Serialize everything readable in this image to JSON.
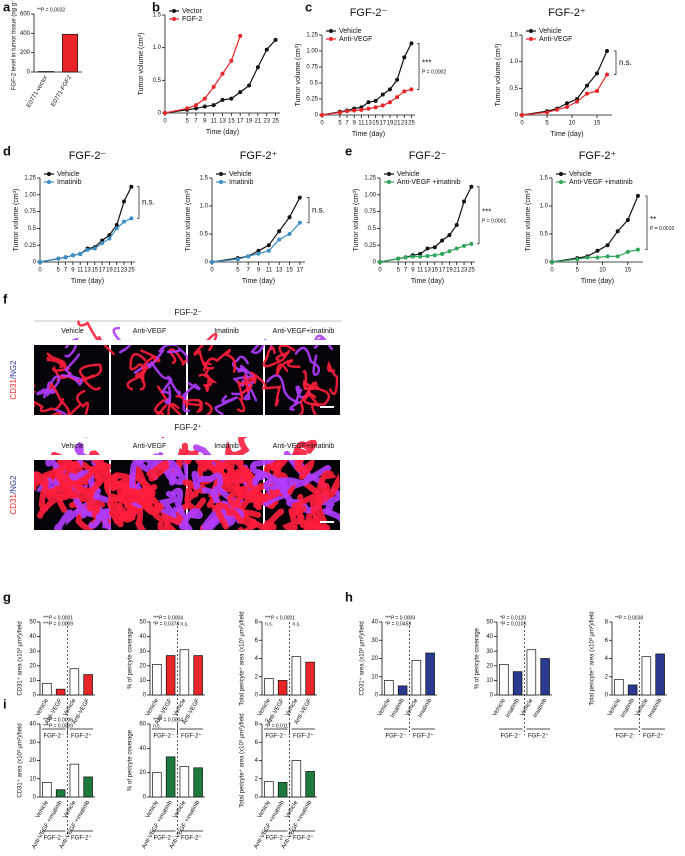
{
  "chart_data": [
    {
      "type": "bar",
      "panel": "a",
      "ylabel": "FGF-2 level in tumor tissue (ng g⁻¹)",
      "categories": [
        "E0771-vector",
        "E0771-FGF2"
      ],
      "values": [
        5,
        390
      ],
      "colors": [
        "#ffffff",
        "#e8262a"
      ],
      "ylim": [
        0,
        600
      ],
      "yticks": [
        0,
        200,
        400,
        600
      ],
      "annotations": [
        "**P = 0.0032"
      ]
    },
    {
      "type": "line",
      "panel": "b",
      "xlabel": "Time (day)",
      "ylabel": "Tumor volume (cm³)",
      "x": [
        0,
        5,
        7,
        9,
        11,
        13,
        15,
        17,
        19,
        21,
        23,
        25
      ],
      "xlim": [
        0,
        26
      ],
      "xticks": [
        0,
        5,
        7,
        9,
        11,
        13,
        15,
        17,
        19,
        21,
        23,
        25
      ],
      "ylim": [
        0,
        1.5
      ],
      "yticks": [
        0,
        0.5,
        {
          "value": 1,
          "label": "1.0"
        },
        1.5
      ],
      "series": [
        {
          "name": "Vector",
          "color": "#111111",
          "values": [
            0,
            0.05,
            0.07,
            0.1,
            0.12,
            0.2,
            0.22,
            0.32,
            0.42,
            0.7,
            0.97,
            1.12
          ]
        },
        {
          "name": "FGF-2",
          "color": "#e8262a",
          "values": [
            0,
            0.07,
            0.12,
            0.22,
            0.4,
            0.6,
            0.8,
            1.18,
            null,
            null,
            null,
            null
          ]
        }
      ]
    },
    {
      "type": "line",
      "panel": "c",
      "title": "FGF-2⁻",
      "xlabel": "Time (day)",
      "ylabel": "Tumor volume (cm³)",
      "x": [
        0,
        5,
        7,
        9,
        11,
        13,
        15,
        17,
        19,
        21,
        23,
        25
      ],
      "xlim": [
        0,
        26
      ],
      "xticks": [
        0,
        5,
        7,
        9,
        11,
        13,
        15,
        17,
        19,
        21,
        23,
        25
      ],
      "ylim": [
        0,
        1.25
      ],
      "yticks": [
        0,
        0.25,
        0.5,
        0.75,
        {
          "value": 1,
          "label": "1.00"
        },
        1.25
      ],
      "series": [
        {
          "name": "Vehicle",
          "color": "#111111",
          "values": [
            0,
            0.05,
            0.07,
            0.1,
            0.12,
            0.2,
            0.22,
            0.32,
            0.4,
            0.55,
            0.9,
            1.12
          ]
        },
        {
          "name": "Anti-VEGF",
          "color": "#e8262a",
          "values": [
            0,
            0.04,
            0.06,
            0.07,
            0.08,
            0.1,
            0.12,
            0.15,
            0.2,
            0.28,
            0.37,
            0.4
          ]
        }
      ],
      "annotations": [
        "***",
        "P = 0.0002"
      ]
    },
    {
      "type": "line",
      "title": "FGF-2⁺",
      "xlabel": "Time (day)",
      "ylabel": "Tumor volume (cm³)",
      "x": [
        0,
        5,
        7,
        9,
        11,
        13,
        15,
        17
      ],
      "xlim": [
        0,
        18
      ],
      "xticks": [
        0,
        5,
        10,
        15
      ],
      "ylim": [
        0,
        1.5
      ],
      "yticks": [
        0,
        0.5,
        {
          "value": 1,
          "label": "1.0"
        },
        1.5
      ],
      "series": [
        {
          "name": "Vehicle",
          "color": "#111111",
          "values": [
            0,
            0.07,
            0.12,
            0.22,
            0.3,
            0.55,
            0.78,
            1.2
          ]
        },
        {
          "name": "Anti-VEGF",
          "color": "#e8262a",
          "values": [
            0,
            0.05,
            0.1,
            0.15,
            0.25,
            0.4,
            0.45,
            0.76
          ]
        }
      ],
      "annotations": [
        "n.s."
      ]
    },
    {
      "type": "line",
      "panel": "d",
      "title": "FGF-2⁻",
      "xlabel": "Time (day)",
      "ylabel": "Tumor volume (cm³)",
      "x": [
        0,
        5,
        7,
        9,
        11,
        13,
        15,
        17,
        19,
        21,
        23,
        25
      ],
      "xlim": [
        0,
        26
      ],
      "xticks": [
        0,
        5,
        7,
        9,
        11,
        13,
        15,
        17,
        19,
        21,
        23,
        25
      ],
      "ylim": [
        0,
        1.25
      ],
      "yticks": [
        0,
        0.25,
        0.5,
        0.75,
        {
          "value": 1,
          "label": "1.00"
        },
        1.25
      ],
      "series": [
        {
          "name": "Vehicle",
          "color": "#111111",
          "values": [
            0,
            0.05,
            0.07,
            0.1,
            0.12,
            0.2,
            0.22,
            0.32,
            0.4,
            0.55,
            0.9,
            1.12
          ]
        },
        {
          "name": "Imatinib",
          "color": "#3a8fc4",
          "values": [
            0,
            0.05,
            0.07,
            0.1,
            0.12,
            0.18,
            0.2,
            0.28,
            0.35,
            0.5,
            0.6,
            0.65
          ]
        }
      ],
      "annotations": [
        "n.s."
      ]
    },
    {
      "type": "line",
      "title": "FGF-2⁺",
      "xlabel": "Time (day)",
      "ylabel": "Tumor volume (cm³)",
      "x": [
        0,
        5,
        7,
        9,
        11,
        13,
        15,
        17
      ],
      "xlim": [
        0,
        18
      ],
      "xticks": [
        0,
        5,
        7,
        9,
        11,
        13,
        15,
        17
      ],
      "ylim": [
        0,
        1.5
      ],
      "yticks": [
        0,
        0.5,
        {
          "value": 1,
          "label": "1.0"
        },
        1.5
      ],
      "series": [
        {
          "name": "Vehicle",
          "color": "#111111",
          "values": [
            0,
            0.07,
            0.1,
            0.2,
            0.3,
            0.55,
            0.8,
            1.15
          ]
        },
        {
          "name": "Imatinib",
          "color": "#3a8fc4",
          "values": [
            0,
            0.05,
            0.1,
            0.15,
            0.2,
            0.4,
            0.5,
            0.7
          ]
        }
      ],
      "annotations": [
        "n.s."
      ]
    },
    {
      "type": "line",
      "panel": "e",
      "title": "FGF-2⁻",
      "xlabel": "Time (day)",
      "ylabel": "Tumor volume (cm³)",
      "x": [
        0,
        5,
        7,
        9,
        11,
        13,
        15,
        17,
        19,
        21,
        23,
        25
      ],
      "xlim": [
        0,
        26
      ],
      "xticks": [
        0,
        5,
        7,
        9,
        11,
        13,
        15,
        17,
        19,
        21,
        23,
        25
      ],
      "ylim": [
        0,
        1.25
      ],
      "yticks": [
        0,
        0.25,
        0.5,
        0.75,
        {
          "value": 1,
          "label": "1.00"
        },
        1.25
      ],
      "series": [
        {
          "name": "Vehicle",
          "color": "#111111",
          "values": [
            0,
            0.05,
            0.07,
            0.1,
            0.12,
            0.2,
            0.22,
            0.32,
            0.4,
            0.55,
            0.9,
            1.12
          ]
        },
        {
          "name": "Anti-VEGF +imatinib",
          "color": "#2ea55a",
          "values": [
            0,
            0.05,
            0.07,
            0.08,
            0.08,
            0.09,
            0.1,
            0.12,
            0.16,
            0.2,
            0.24,
            0.27
          ]
        }
      ],
      "annotations": [
        "***",
        "P = 0.0001"
      ]
    },
    {
      "type": "line",
      "title": "FGF-2⁺",
      "xlabel": "Time (day)",
      "ylabel": "Tumor volume (cm³)",
      "x": [
        0,
        5,
        7,
        9,
        11,
        13,
        15,
        17
      ],
      "xlim": [
        0,
        18
      ],
      "xticks": [
        0,
        5,
        10,
        15
      ],
      "ylim": [
        0,
        1.5
      ],
      "yticks": [
        0,
        0.5,
        {
          "value": 1,
          "label": "1.0"
        },
        1.5
      ],
      "series": [
        {
          "name": "Vehicle",
          "color": "#111111",
          "values": [
            0,
            0.07,
            0.1,
            0.2,
            0.3,
            0.55,
            0.75,
            1.18
          ]
        },
        {
          "name": "Anti-VEGF +imatinib",
          "color": "#2ea55a",
          "values": [
            0,
            0.05,
            0.08,
            0.08,
            0.1,
            0.1,
            0.18,
            0.22
          ]
        }
      ],
      "annotations": [
        "**",
        "P = 0.0010"
      ]
    },
    {
      "type": "bar",
      "panel": "g",
      "ylabel": "CD31⁺ area (x10³ µm²)/field",
      "categories": [
        "Vehicle",
        "Anti-VEGF",
        "Vehicle",
        "Anti-VEGF"
      ],
      "groups": [
        "FGF-2⁻",
        "FGF-2⁺"
      ],
      "values": [
        8,
        4,
        18,
        14
      ],
      "colors": [
        "#ffffff",
        "#e8262a",
        "#ffffff",
        "#e8262a"
      ],
      "ylim": [
        0,
        50
      ],
      "yticks": [
        0,
        10,
        20,
        30,
        40,
        50
      ],
      "annotations": [
        "***P < 0.0001",
        "***P = 0.0009"
      ]
    },
    {
      "type": "bar",
      "ylabel": "% of pericyte coverage",
      "categories": [
        "Vehicle",
        "Anti-VEGF",
        "Vehicle",
        "Anti-VEGF"
      ],
      "groups": [
        "FGF-2⁻",
        "FGF-2⁺"
      ],
      "values": [
        21,
        27,
        31,
        27
      ],
      "colors": [
        "#ffffff",
        "#e8262a",
        "#ffffff",
        "#e8262a"
      ],
      "ylim": [
        0,
        50
      ],
      "yticks": [
        0,
        10,
        20,
        30,
        40,
        50
      ],
      "annotations": [
        "***P = 0.0004",
        "*P = 0.0374",
        "n.s."
      ]
    },
    {
      "type": "bar",
      "ylabel": "Total pericyte⁺ area (x10³ µm²)/field",
      "categories": [
        "Vehicle",
        "Anti-VEGF",
        "Vehicle",
        "Anti-VEGF"
      ],
      "groups": [
        "FGF-2⁻",
        "FGF-2⁺"
      ],
      "values": [
        1.8,
        1.6,
        4.2,
        3.6
      ],
      "colors": [
        "#ffffff",
        "#e8262a",
        "#ffffff",
        "#e8262a"
      ],
      "ylim": [
        0,
        8
      ],
      "yticks": [
        0,
        2,
        4,
        6,
        8
      ],
      "annotations": [
        "***P < 0.0001",
        "n.s.",
        "n.s."
      ]
    },
    {
      "type": "bar",
      "panel": "h",
      "ylabel": "CD31⁺ area (x10³ µm²)/field",
      "categories": [
        "Vehicle",
        "Imatinib",
        "Vehicle",
        "Imatinib"
      ],
      "groups": [
        "FGF-2⁻",
        "FGF-2⁺"
      ],
      "values": [
        8,
        5,
        19,
        23
      ],
      "colors": [
        "#ffffff",
        "#2b3990",
        "#ffffff",
        "#2b3990"
      ],
      "ylim": [
        0,
        40
      ],
      "yticks": [
        0,
        10,
        20,
        30,
        40
      ],
      "annotations": [
        "***P = 0.0009",
        "*P = 0.0453"
      ]
    },
    {
      "type": "bar",
      "ylabel": "% of pericyte coverage",
      "categories": [
        "Vehicle",
        "Imatinib",
        "Vehicle",
        "Imatinib"
      ],
      "groups": [
        "FGF-2⁻",
        "FGF-2⁺"
      ],
      "values": [
        21,
        16,
        31,
        25
      ],
      "colors": [
        "#ffffff",
        "#2b3990",
        "#ffffff",
        "#2b3990"
      ],
      "ylim": [
        0,
        50
      ],
      "yticks": [
        0,
        10,
        20,
        30,
        40,
        50
      ],
      "annotations": [
        "*P = 0.0120",
        "*P = 0.0103"
      ]
    },
    {
      "type": "bar",
      "ylabel": "Total pericyte⁺ area (x10³ µm²)/field",
      "categories": [
        "Vehicle",
        "Imatinib",
        "Vehicle",
        "Imatinib"
      ],
      "groups": [
        "FGF-2⁻",
        "FGF-2⁺"
      ],
      "values": [
        1.7,
        1.1,
        4.2,
        4.5
      ],
      "colors": [
        "#ffffff",
        "#2b3990",
        "#ffffff",
        "#2b3990"
      ],
      "ylim": [
        0,
        8
      ],
      "yticks": [
        0,
        2,
        4,
        6,
        8
      ],
      "annotations": [
        "**P = 0.0038"
      ]
    },
    {
      "type": "bar",
      "panel": "i",
      "ylabel": "CD31⁺ area (x10³ µm²)/field",
      "categories": [
        "Vehicle",
        "Anti-VEGF +imatinib",
        "Vehicle",
        "Anti-VEGF +imatinib"
      ],
      "groups": [
        "FGF-2⁻",
        "FGF-2⁺"
      ],
      "values": [
        8,
        4,
        18,
        11
      ],
      "colors": [
        "#ffffff",
        "#1e7a3c",
        "#ffffff",
        "#1e7a3c"
      ],
      "ylim": [
        0,
        40
      ],
      "yticks": [
        0,
        10,
        20,
        30,
        40
      ],
      "annotations": [
        "***P = 0.0006",
        "***P = 0.0009"
      ]
    },
    {
      "type": "bar",
      "ylabel": "% of pericyte coverage",
      "categories": [
        "Vehicle",
        "Anti-VEGF +imatinib",
        "Vehicle",
        "Anti-VEGF +imatinib"
      ],
      "groups": [
        "FGF-2⁻",
        "FGF-2⁺"
      ],
      "values": [
        20,
        33,
        25,
        24
      ],
      "colors": [
        "#ffffff",
        "#1e7a3c",
        "#ffffff",
        "#1e7a3c"
      ],
      "ylim": [
        0,
        60
      ],
      "yticks": [
        0,
        20,
        40,
        60
      ],
      "annotations": [
        "***P = 0.0004",
        "n.s."
      ]
    },
    {
      "type": "bar",
      "ylabel": "Total pericyte⁺ area (x10³ µm²)/field",
      "categories": [
        "Vehicle",
        "Anti-VEGF +imatinib",
        "Vehicle",
        "Anti-VEGF +imatinib"
      ],
      "groups": [
        "FGF-2⁻",
        "FGF-2⁺"
      ],
      "values": [
        1.7,
        1.6,
        4,
        2.8
      ],
      "colors": [
        "#ffffff",
        "#1e7a3c",
        "#ffffff",
        "#1e7a3c"
      ],
      "ylim": [
        0,
        8
      ],
      "yticks": [
        0,
        2,
        4,
        6,
        8
      ],
      "annotations": [
        "n.s.",
        "*P = 0.0117"
      ]
    }
  ],
  "figure_f": {
    "panel": "f",
    "stain": [
      "CD31",
      "/NG2"
    ],
    "groups": [
      {
        "title": "FGF-2⁻",
        "columns": [
          "Vehicle",
          "Anti-VEGF",
          "Imatinib",
          "Anti-VEGF+imatinib"
        ]
      },
      {
        "title": "FGF-2⁺",
        "columns": [
          "Vehicle",
          "Anti-VEGF",
          "Imatinib",
          "Anti-VEGF+imatinib"
        ]
      }
    ]
  }
}
